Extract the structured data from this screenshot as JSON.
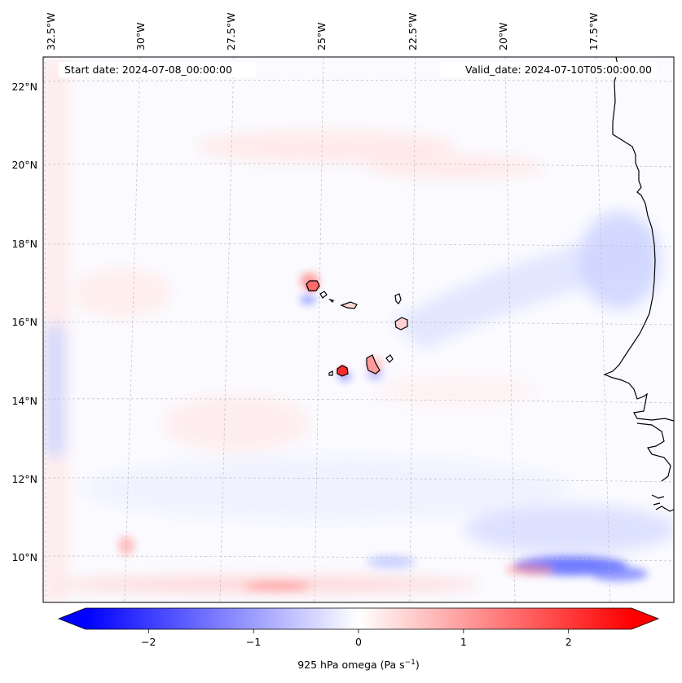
{
  "map": {
    "start_date": "Start date: 2024-07-08_00:00:00",
    "valid_date": "Valid_date: 2024-07-10T05:00:00.00",
    "longitude_labels": [
      "32.5°W",
      "30°W",
      "27.5°W",
      "25°W",
      "22.5°W",
      "20°W",
      "17.5°W"
    ],
    "latitude_labels": [
      "22°N",
      "20°N",
      "18°N",
      "16°N",
      "14°N",
      "12°N",
      "10°N"
    ],
    "colors": {
      "min": "#0000ff",
      "mid": "#ffffff",
      "max": "#ff0000",
      "coastline": "#000000",
      "gridline": "#bdbdbd"
    }
  },
  "colorbar": {
    "label": "925 hPa omega (Pa s",
    "label_exponent": "−1",
    "label_suffix": ")",
    "ticks": [
      "−2",
      "−1",
      "0",
      "1",
      "2"
    ],
    "tick_values": [
      -2,
      -1,
      0,
      1,
      2
    ],
    "range": [
      -2.6,
      2.6
    ],
    "extend": "both"
  }
}
